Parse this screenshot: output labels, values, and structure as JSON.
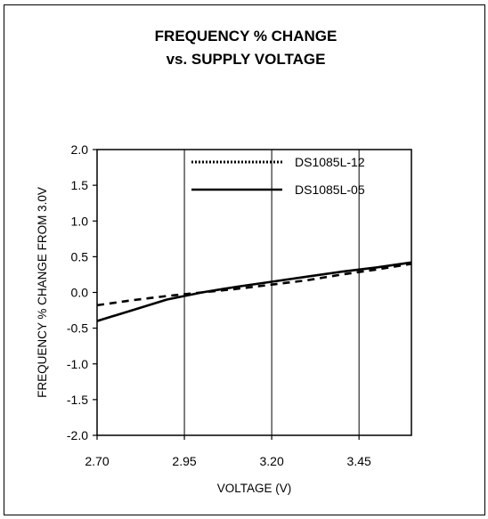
{
  "chart_data": {
    "type": "line",
    "title": [
      "FREQUENCY % CHANGE",
      "vs. SUPPLY VOLTAGE"
    ],
    "xlabel": "VOLTAGE (V)",
    "ylabel": "FREQUENCY % CHANGE FROM 3.0V",
    "xlim": [
      2.7,
      3.6
    ],
    "ylim": [
      -2.0,
      2.0
    ],
    "xticks": [
      "2.70",
      "2.95",
      "3.20",
      "3.45"
    ],
    "yticks": [
      "2.0",
      "1.5",
      "1.0",
      "0.5",
      "0.0",
      "-0.5",
      "-1.0",
      "-1.5",
      "-2.0"
    ],
    "grid": "vertical",
    "legend_position": "top-right",
    "series": [
      {
        "name": "DS1085L-12",
        "style": "dotted",
        "x": [
          2.7,
          2.8,
          2.9,
          3.0,
          3.1,
          3.2,
          3.3,
          3.4,
          3.5,
          3.6
        ],
        "y": [
          -0.18,
          -0.11,
          -0.05,
          0.0,
          0.05,
          0.11,
          0.17,
          0.25,
          0.32,
          0.4
        ]
      },
      {
        "name": "DS1085L-05",
        "style": "solid",
        "x": [
          2.7,
          2.8,
          2.9,
          3.0,
          3.1,
          3.2,
          3.3,
          3.4,
          3.5,
          3.6
        ],
        "y": [
          -0.4,
          -0.25,
          -0.1,
          0.0,
          0.08,
          0.15,
          0.22,
          0.29,
          0.35,
          0.42
        ]
      }
    ]
  }
}
